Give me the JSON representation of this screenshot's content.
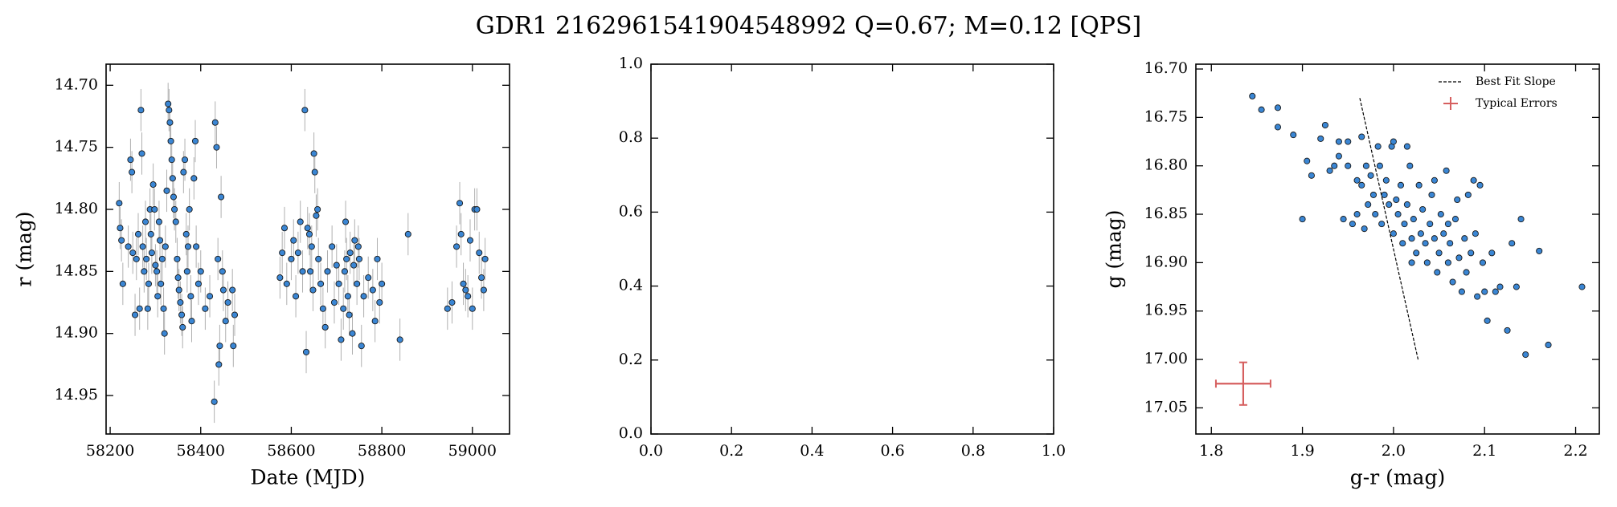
{
  "title": "GDR1 2162961541904548992  Q=0.67; M=0.12 [QPS]",
  "chart_data": [
    {
      "type": "scatter",
      "xlabel": "Date (MJD)",
      "ylabel": "r (mag)",
      "xlim": [
        58191,
        59082
      ],
      "ylim": [
        14.981,
        14.683
      ],
      "xticks": [
        58200,
        58400,
        58600,
        58800,
        59000
      ],
      "yticks": [
        {
          "value": 14.7,
          "label": "14.70"
        },
        14.75,
        {
          "value": 14.8,
          "label": "14.80"
        },
        14.85,
        {
          "value": 14.9,
          "label": "14.90"
        },
        14.95
      ],
      "series": [
        {
          "color": "#3a86d4",
          "yerr": 0.017,
          "errcolor": "#b0b0b0",
          "x": [
            58220,
            58222,
            58225,
            58228,
            58240,
            58245,
            58248,
            58250,
            58255,
            58258,
            58262,
            58265,
            58268,
            58270,
            58272,
            58275,
            58278,
            58280,
            58283,
            58285,
            58288,
            58290,
            58292,
            58295,
            58298,
            58300,
            58303,
            58305,
            58308,
            58310,
            58312,
            58315,
            58318,
            58320,
            58322,
            58325,
            58328,
            58330,
            58332,
            58334,
            58336,
            58338,
            58340,
            58342,
            58345,
            58348,
            58350,
            58352,
            58355,
            58358,
            58360,
            58362,
            58365,
            58368,
            58370,
            58372,
            58375,
            58378,
            58380,
            58385,
            58388,
            58390,
            58395,
            58400,
            58410,
            58420,
            58430,
            58432,
            58435,
            58438,
            58440,
            58442,
            58445,
            58448,
            58450,
            58455,
            58460,
            58470,
            58472,
            58475,
            58575,
            58580,
            58585,
            58590,
            58600,
            58605,
            58610,
            58615,
            58620,
            58625,
            58630,
            58633,
            58636,
            58640,
            58642,
            58645,
            58648,
            58650,
            58652,
            58655,
            58658,
            58660,
            58665,
            58670,
            58675,
            58680,
            58690,
            58695,
            58700,
            58705,
            58710,
            58715,
            58718,
            58720,
            58722,
            58725,
            58728,
            58730,
            58735,
            58738,
            58740,
            58745,
            58748,
            58750,
            58755,
            58760,
            58770,
            58780,
            58785,
            58790,
            58795,
            58800,
            58840,
            58858,
            58945,
            58955,
            58965,
            58972,
            58975,
            58980,
            58985,
            58990,
            58995,
            59000,
            59005,
            59010,
            59015,
            59020,
            59025,
            59028
          ],
          "y": [
            14.795,
            14.815,
            14.825,
            14.86,
            14.83,
            14.76,
            14.77,
            14.835,
            14.885,
            14.84,
            14.82,
            14.88,
            14.72,
            14.755,
            14.83,
            14.85,
            14.81,
            14.84,
            14.88,
            14.86,
            14.8,
            14.82,
            14.835,
            14.78,
            14.8,
            14.845,
            14.85,
            14.87,
            14.81,
            14.825,
            14.86,
            14.84,
            14.88,
            14.9,
            14.83,
            14.785,
            14.715,
            14.72,
            14.73,
            14.745,
            14.76,
            14.775,
            14.79,
            14.8,
            14.81,
            14.84,
            14.855,
            14.865,
            14.875,
            14.885,
            14.895,
            14.77,
            14.76,
            14.82,
            14.85,
            14.83,
            14.8,
            14.87,
            14.89,
            14.775,
            14.745,
            14.83,
            14.86,
            14.85,
            14.88,
            14.87,
            14.955,
            14.73,
            14.75,
            14.84,
            14.925,
            14.91,
            14.79,
            14.85,
            14.865,
            14.89,
            14.875,
            14.865,
            14.91,
            14.885,
            14.855,
            14.835,
            14.815,
            14.86,
            14.84,
            14.825,
            14.87,
            14.835,
            14.81,
            14.85,
            14.72,
            14.915,
            14.815,
            14.82,
            14.85,
            14.83,
            14.865,
            14.755,
            14.77,
            14.805,
            14.8,
            14.84,
            14.86,
            14.88,
            14.895,
            14.85,
            14.83,
            14.875,
            14.845,
            14.86,
            14.905,
            14.88,
            14.85,
            14.81,
            14.84,
            14.87,
            14.885,
            14.835,
            14.9,
            14.845,
            14.825,
            14.86,
            14.83,
            14.84,
            14.91,
            14.87,
            14.855,
            14.865,
            14.89,
            14.84,
            14.875,
            14.86,
            14.905,
            14.82,
            14.88,
            14.875,
            14.83,
            14.795,
            14.82,
            14.86,
            14.865,
            14.87,
            14.825,
            14.88,
            14.8,
            14.8,
            14.835,
            14.855,
            14.865,
            14.84
          ]
        }
      ]
    },
    {
      "type": "blank",
      "xlim": [
        0,
        1
      ],
      "ylim": [
        0,
        1
      ],
      "xticks": [
        {
          "value": 0,
          "label": "0.0"
        },
        0.2,
        0.4,
        0.6,
        0.8,
        {
          "value": 1,
          "label": "1.0"
        }
      ],
      "yticks": [
        {
          "value": 0,
          "label": "0.0"
        },
        0.2,
        0.4,
        0.6,
        0.8,
        {
          "value": 1,
          "label": "1.0"
        }
      ]
    },
    {
      "type": "scatter",
      "xlabel": "g-r (mag)",
      "ylabel": "g (mag)",
      "xlim": [
        1.783,
        2.226
      ],
      "ylim": [
        17.077,
        16.695
      ],
      "xticks": [
        1.8,
        1.9,
        {
          "value": 2,
          "label": "2.0"
        },
        2.1,
        2.2
      ],
      "yticks": [
        {
          "value": 16.7,
          "label": "16.70"
        },
        16.75,
        {
          "value": 16.8,
          "label": "16.80"
        },
        16.85,
        {
          "value": 16.9,
          "label": "16.90"
        },
        16.95,
        {
          "value": 17,
          "label": "17.00"
        },
        17.05
      ],
      "legend": "upper right",
      "series": [
        {
          "color": "#3a86d4",
          "x": [
            1.845,
            1.855,
            1.873,
            1.873,
            1.89,
            1.9,
            1.905,
            1.91,
            1.92,
            1.925,
            1.93,
            1.935,
            1.94,
            1.94,
            1.945,
            1.95,
            1.95,
            1.955,
            1.96,
            1.96,
            1.965,
            1.968,
            1.97,
            1.972,
            1.975,
            1.978,
            1.98,
            1.983,
            1.985,
            1.987,
            1.99,
            1.992,
            1.995,
            1.998,
            2.0,
            2.003,
            2.005,
            2.008,
            2.01,
            2.012,
            2.015,
            2.018,
            2.02,
            2.022,
            2.025,
            2.028,
            2.03,
            2.032,
            2.035,
            2.037,
            2.04,
            2.042,
            2.045,
            2.048,
            2.05,
            2.052,
            2.055,
            2.058,
            2.06,
            2.062,
            2.065,
            2.068,
            2.07,
            2.072,
            2.075,
            2.078,
            2.08,
            2.082,
            2.085,
            2.088,
            2.09,
            2.092,
            2.095,
            2.098,
            2.1,
            2.103,
            2.108,
            2.112,
            2.117,
            2.125,
            2.13,
            2.135,
            2.14,
            2.145,
            2.16,
            2.17,
            2.207,
            2.02,
            1.965,
            2.0,
            2.015,
            2.045,
            2.06
          ],
          "y": [
            16.728,
            16.742,
            16.74,
            16.76,
            16.768,
            16.855,
            16.795,
            16.81,
            16.772,
            16.758,
            16.805,
            16.8,
            16.79,
            16.775,
            16.855,
            16.8,
            16.775,
            16.86,
            16.815,
            16.85,
            16.82,
            16.865,
            16.8,
            16.84,
            16.81,
            16.83,
            16.85,
            16.78,
            16.8,
            16.86,
            16.83,
            16.815,
            16.84,
            16.78,
            16.87,
            16.835,
            16.85,
            16.82,
            16.88,
            16.86,
            16.84,
            16.8,
            16.875,
            16.855,
            16.89,
            16.82,
            16.87,
            16.845,
            16.88,
            16.9,
            16.86,
            16.83,
            16.875,
            16.91,
            16.89,
            16.85,
            16.87,
            16.805,
            16.9,
            16.88,
            16.92,
            16.855,
            16.835,
            16.895,
            16.93,
            16.875,
            16.91,
            16.83,
            16.89,
            16.815,
            16.87,
            16.935,
            16.82,
            16.9,
            16.93,
            16.96,
            16.89,
            16.93,
            16.925,
            16.97,
            16.88,
            16.925,
            16.855,
            16.995,
            16.888,
            16.985,
            16.925,
            16.9,
            16.77,
            16.775,
            16.78,
            16.815,
            16.86
          ]
        }
      ],
      "lines": [
        {
          "name": "Best Fit Slope",
          "color": "#000000",
          "x": [
            1.963,
            2.027
          ],
          "y": [
            16.73,
            17.0
          ]
        }
      ],
      "errorbars": [
        {
          "name": "Typical Errors",
          "color": "#d65f5f",
          "x": 1.835,
          "y": 17.025,
          "xerr": 0.03,
          "yerr": 0.022
        }
      ]
    }
  ]
}
